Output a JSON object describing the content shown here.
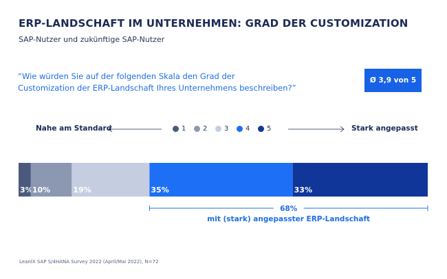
{
  "header": {
    "title": "ERP-LANDSCHAFT IM UNTERNEHMEN: GRAD DER CUSTOMIZATION",
    "subtitle": "SAP-Nutzer und zukünftige SAP-Nutzer"
  },
  "question": {
    "line1": "“Wie würden Sie auf der folgenden Skala den Grad der",
    "line2": "Customization der ERP-Landschaft Ihres Unternehmens beschreiben?”"
  },
  "score_badge": "Ø 3,9 von 5",
  "scale": {
    "left_label": "Nahe am Standard",
    "right_label": "Stark angepasst"
  },
  "colors": {
    "s1": "#4a5a7d",
    "s2": "#8c98b2",
    "s3": "#c5cee1",
    "s4": "#1d6ff5",
    "s5": "#11369a",
    "accent": "#1f6fe5"
  },
  "chart_data": {
    "type": "bar",
    "orientation": "horizontal-stacked",
    "title": "ERP-LANDSCHAFT IM UNTERNEHMEN: GRAD DER CUSTOMIZATION",
    "categories": [
      "1",
      "2",
      "3",
      "4",
      "5"
    ],
    "values": [
      3,
      10,
      19,
      35,
      33
    ],
    "labels": [
      "3%",
      "10%",
      "19%",
      "35%",
      "33%"
    ],
    "unit": "%",
    "legend": [
      "1",
      "2",
      "3",
      "4",
      "5"
    ],
    "annotation": {
      "value": "68%",
      "text": "mit (stark) angepasster ERP-Landschaft",
      "covers": [
        "4",
        "5"
      ]
    }
  },
  "footnote": "LeanIX SAP S/4HANA Survey 2022 (April/Mai 2022), N=72"
}
